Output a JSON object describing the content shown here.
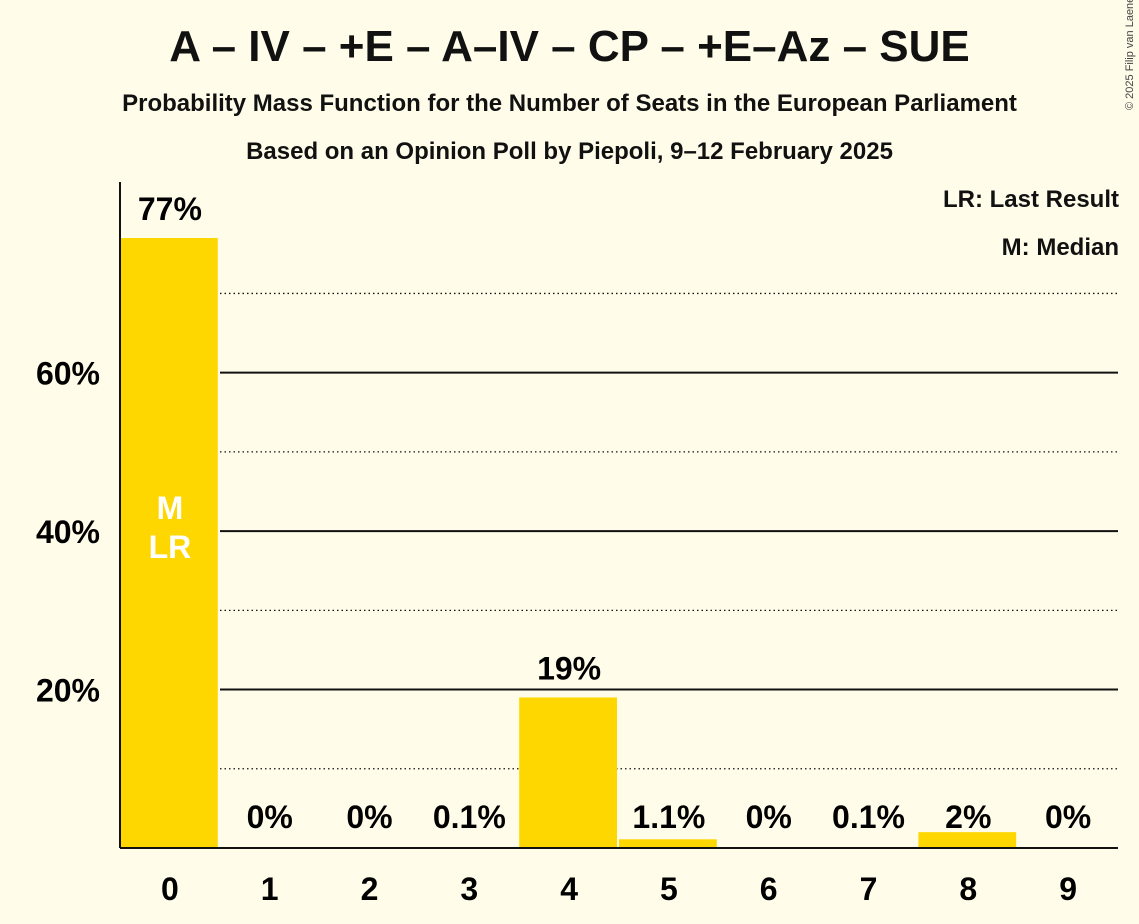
{
  "header": {
    "title": "A – IV – +E – A–IV – CP – +E–Az – SUE",
    "subtitle": "Probability Mass Function for the Number of Seats in the European Parliament",
    "source": "Based on an Opinion Poll by Piepoli, 9–12 February 2025",
    "copyright": "© 2025 Filip van Laenen"
  },
  "legend": {
    "last_result": "LR: Last Result",
    "median": "M: Median"
  },
  "chart_data": {
    "type": "bar",
    "title": "A – IV – +E – A–IV – CP – +E–Az – SUE",
    "categories": [
      "0",
      "1",
      "2",
      "3",
      "4",
      "5",
      "6",
      "7",
      "8",
      "9"
    ],
    "values": [
      77,
      0,
      0,
      0.1,
      19,
      1.1,
      0,
      0.1,
      2,
      0
    ],
    "data_labels": [
      "77%",
      "0%",
      "0%",
      "0.1%",
      "19%",
      "1.1%",
      "0%",
      "0.1%",
      "2%",
      "0%"
    ],
    "ylim": [
      0,
      80
    ],
    "yticks": [
      20,
      40,
      60
    ],
    "ytick_labels": [
      "20%",
      "40%",
      "60%"
    ],
    "minor_gridlines": [
      10,
      30,
      50,
      70
    ],
    "median_seat": "0",
    "last_result_seat": "0",
    "median_marker": "M",
    "last_result_marker": "LR",
    "bar_color": "#ffd700",
    "background_color": "#fffde9",
    "legend_position": "top-right"
  }
}
